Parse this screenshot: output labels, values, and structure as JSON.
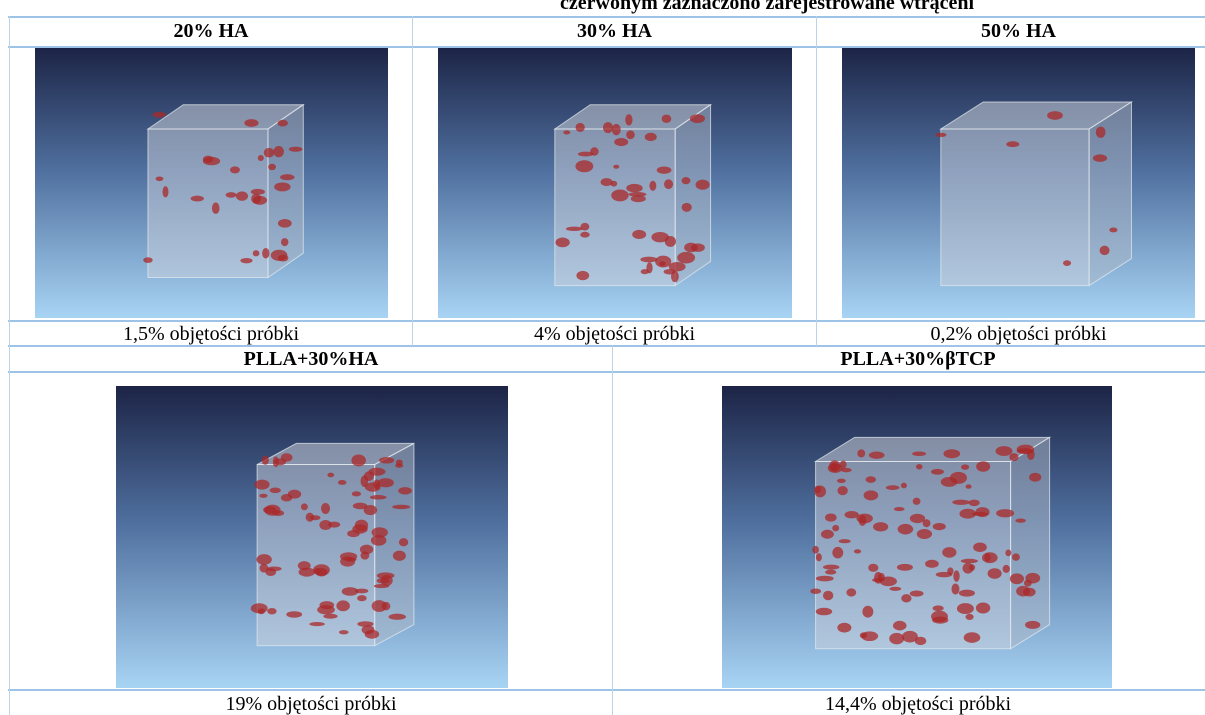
{
  "document": {
    "caption_top": "czerwonym zaznaczono zarejestrowane wtrąceni",
    "table": {
      "rows": [
        {
          "headers": [
            "20% HA",
            "30% HA",
            "50% HA"
          ],
          "captions": [
            "1,5% objętości próbki",
            "4% objętości próbki",
            "0,2% objętości próbki"
          ]
        },
        {
          "headers": [
            "PLLA+30%HA",
            "PLLA+30%βTCP"
          ],
          "captions": [
            "19% objętości próbki",
            "14,4% objętości próbki"
          ]
        }
      ]
    }
  }
}
